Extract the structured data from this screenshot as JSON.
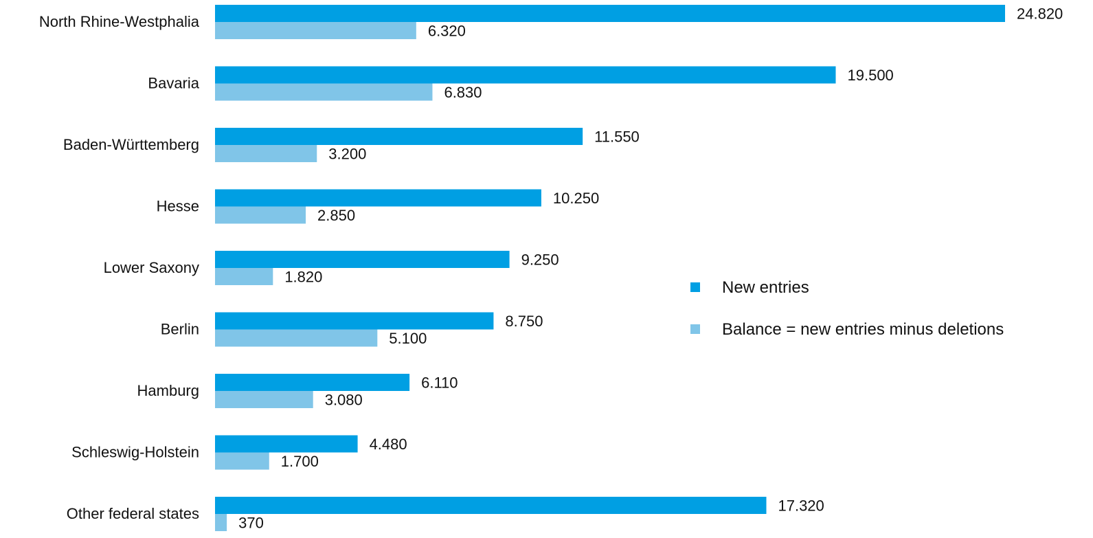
{
  "chart_data": {
    "type": "bar",
    "orientation": "horizontal",
    "categories": [
      "North Rhine-Westphalia",
      "Bavaria",
      "Baden-Württemberg",
      "Hesse",
      "Lower Saxony",
      "Berlin",
      "Hamburg",
      "Schleswig-Holstein",
      "Other federal states"
    ],
    "series": [
      {
        "name": "New entries",
        "color": "#009fe3",
        "values": [
          24820,
          19500,
          11550,
          10250,
          9250,
          8750,
          6110,
          4480,
          17320
        ],
        "labels": [
          "24.820",
          "19.500",
          "11.550",
          "10.250",
          "9.250",
          "8.750",
          "6.110",
          "4.480",
          "17.320"
        ]
      },
      {
        "name": "Balance = new entries minus deletions",
        "color": "#80c5e8",
        "values": [
          6320,
          6830,
          3200,
          2850,
          1820,
          5100,
          3080,
          1700,
          370
        ],
        "labels": [
          "6.320",
          "6.830",
          "3.200",
          "2.850",
          "1.820",
          "5.100",
          "3.080",
          "1.700",
          "370"
        ]
      }
    ],
    "title": "",
    "xlabel": "",
    "ylabel": "",
    "xlim": [
      0,
      24820
    ],
    "grid": false,
    "legend_position": "right"
  }
}
